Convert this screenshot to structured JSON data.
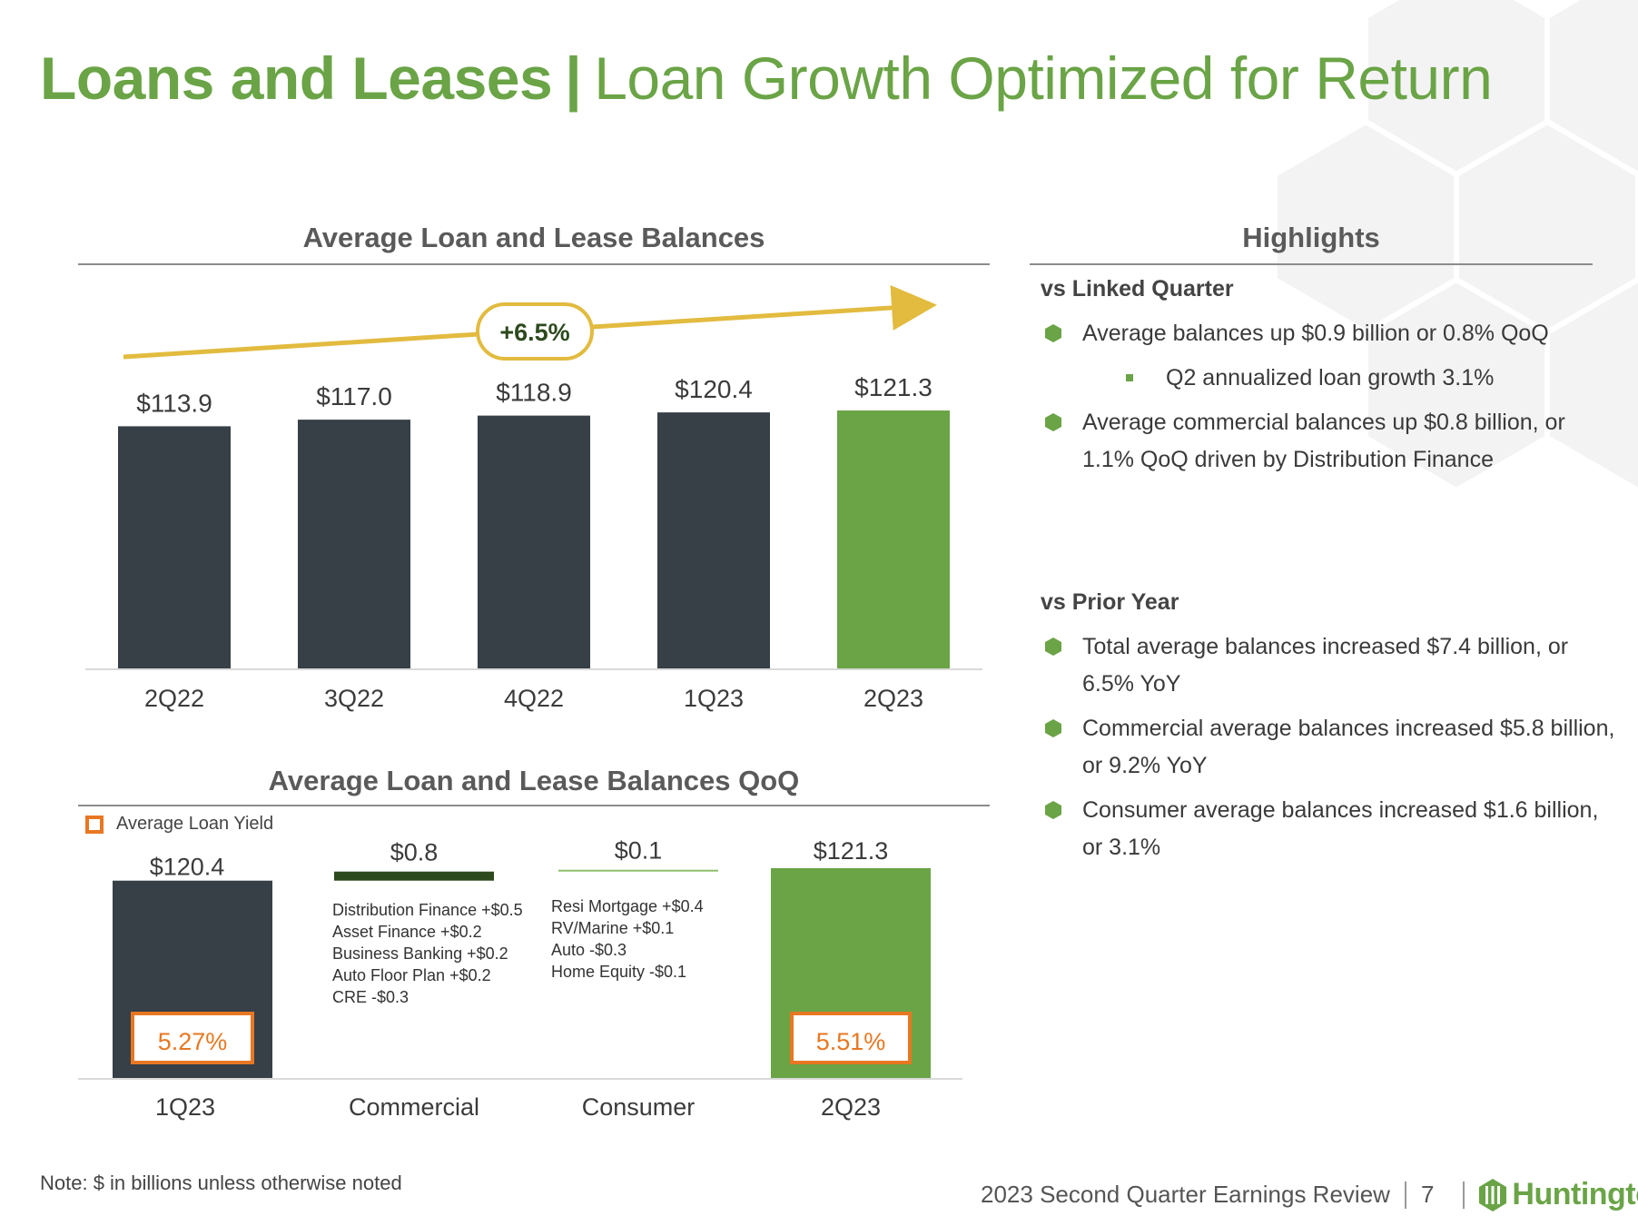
{
  "title": {
    "bold_part": "Loans and Leases",
    "separator": "|",
    "light_part": "Loan Growth Optimized for Return"
  },
  "colors": {
    "brand_green": "#6aa446",
    "dark_bar": "#373f47",
    "gold": "#e2bb3f",
    "orange": "#e87722",
    "commercial_bar": "#2d4a1e"
  },
  "chart_data": [
    {
      "type": "bar",
      "title": "Average Loan and Lease Balances",
      "categories": [
        "2Q22",
        "3Q22",
        "4Q22",
        "1Q23",
        "2Q23"
      ],
      "values": [
        113.9,
        117.0,
        118.9,
        120.4,
        121.3
      ],
      "value_labels": [
        "$113.9",
        "$117.0",
        "$118.9",
        "$120.4",
        "$121.3"
      ],
      "growth_annotation": "+6.5%",
      "ylim": [
        0,
        121.3
      ],
      "xlabel": "",
      "ylabel": ""
    },
    {
      "type": "bar",
      "subtype": "waterfall",
      "title": "Average Loan and Lease Balances QoQ",
      "legend": "Average Loan Yield",
      "categories": [
        "1Q23",
        "Commercial",
        "Consumer",
        "2Q23"
      ],
      "values": [
        120.4,
        0.8,
        0.1,
        121.3
      ],
      "value_labels": [
        "$120.4",
        "$0.8",
        "$0.1",
        "$121.3"
      ],
      "yields": {
        "1Q23": "5.27%",
        "2Q23": "5.51%"
      },
      "commercial_details": [
        "Distribution Finance +$0.5",
        "Asset Finance +$0.2",
        "Business Banking +$0.2",
        "Auto Floor Plan +$0.2",
        "CRE -$0.3"
      ],
      "consumer_details": [
        "Resi Mortgage +$0.4",
        "RV/Marine +$0.1",
        "Auto -$0.3",
        "Home Equity -$0.1"
      ]
    }
  ],
  "highlights": {
    "title": "Highlights",
    "linked_quarter": {
      "title": "vs Linked Quarter",
      "item1": "Average balances up $0.9 billion or 0.8% QoQ",
      "sub1": "Q2 annualized loan growth 3.1%",
      "item2": "Average commercial balances up $0.8 billion, or 1.1% QoQ driven by Distribution Finance"
    },
    "prior_year": {
      "title": "vs Prior Year",
      "item1": "Total average balances increased $7.4 billion, or 6.5% YoY",
      "item2": "Commercial average balances increased $5.8 billion, or 9.2% YoY",
      "item3": "Consumer average balances increased $1.6 billion, or 3.1%"
    }
  },
  "note": "Note: $ in billions unless otherwise noted",
  "footer": {
    "report": "2023 Second Quarter Earnings Review",
    "page": "7",
    "brand": "Huntington"
  }
}
